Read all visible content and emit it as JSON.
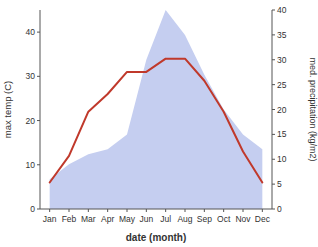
{
  "chart_data": {
    "type": "line",
    "categories": [
      "Jan",
      "Feb",
      "Mar",
      "Apr",
      "May",
      "Jun",
      "Jul",
      "Aug",
      "Sep",
      "Oct",
      "Nov",
      "Dec"
    ],
    "series": [
      {
        "type": "area",
        "axis": "y2",
        "color": "#c5cef0",
        "values": [
          6,
          9,
          11,
          12,
          15,
          30,
          40,
          35,
          27,
          20,
          15,
          12
        ]
      },
      {
        "type": "line",
        "color": "#c0392b",
        "values": [
          6,
          12,
          22,
          26,
          31,
          31,
          34,
          34,
          29,
          22,
          13,
          6
        ]
      }
    ],
    "xlabel": "date (month)",
    "ylabel": "max temp (C)",
    "y2label": "med. precipitation (kg/m2)",
    "ylim": [
      0,
      45
    ],
    "yticks": [
      0,
      10,
      20,
      30,
      40
    ],
    "y2lim": [
      0,
      40
    ],
    "y2ticks": [
      0,
      5,
      10,
      15,
      20,
      25,
      30,
      35,
      40
    ],
    "grid": false
  }
}
